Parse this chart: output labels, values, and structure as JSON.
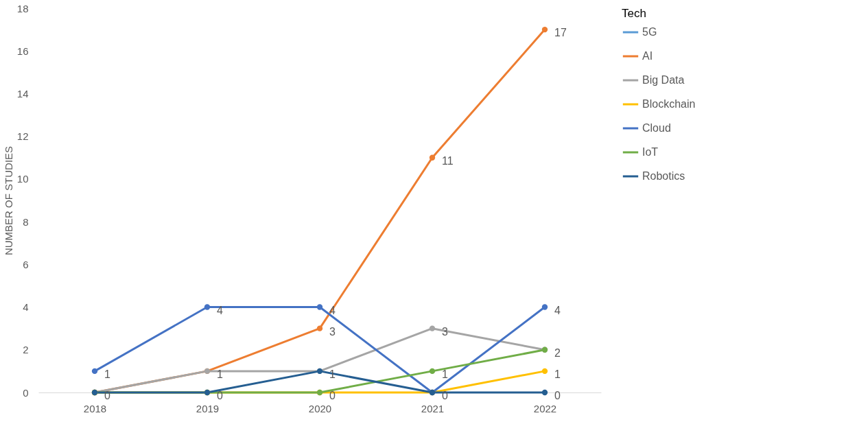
{
  "chart_data": {
    "type": "line",
    "ylabel": "NUMBER OF STUDIES",
    "legend_title": "Tech",
    "categories": [
      "2018",
      "2019",
      "2020",
      "2021",
      "2022"
    ],
    "ylim": [
      0,
      18
    ],
    "yticks": [
      0,
      2,
      4,
      6,
      8,
      10,
      12,
      14,
      16,
      18
    ],
    "grid": false,
    "legend": "right",
    "marker": "circle",
    "line_style": "solid",
    "series": [
      {
        "name": "5G",
        "color": "#5b9bd5",
        "values": [
          null,
          null,
          null,
          null,
          null
        ]
      },
      {
        "name": "AI",
        "color": "#ed7d31",
        "values": [
          0,
          1,
          3,
          11,
          17
        ],
        "value_labels": [
          null,
          null,
          "3",
          "11",
          "17"
        ]
      },
      {
        "name": "Big Data",
        "color": "#a5a5a5",
        "values": [
          0,
          1,
          1,
          3,
          2
        ],
        "value_labels": [
          null,
          "1",
          null,
          "3",
          null
        ]
      },
      {
        "name": "Blockchain",
        "color": "#ffc000",
        "values": [
          0,
          0,
          0,
          0,
          1
        ],
        "value_labels": [
          null,
          null,
          null,
          null,
          "1"
        ]
      },
      {
        "name": "Cloud",
        "color": "#4472c4",
        "values": [
          1,
          4,
          4,
          0,
          4
        ],
        "value_labels": [
          "1",
          "4",
          "4",
          "0",
          "4"
        ]
      },
      {
        "name": "IoT",
        "color": "#70ad47",
        "values": [
          0,
          0,
          0,
          1,
          2
        ],
        "value_labels": [
          null,
          null,
          "0",
          "1",
          "2"
        ]
      },
      {
        "name": "Robotics",
        "color": "#255e91",
        "values": [
          0,
          0,
          1,
          0,
          0
        ],
        "value_labels": [
          "0",
          "0",
          "1",
          null,
          "0"
        ]
      }
    ]
  }
}
